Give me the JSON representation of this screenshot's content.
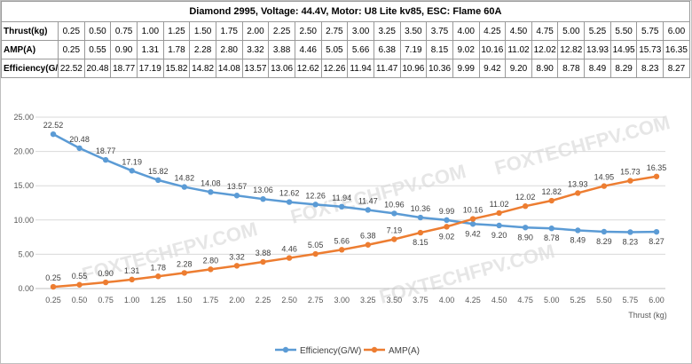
{
  "table": {
    "title": "Diamond 2995, Voltage: 44.4V, Motor: U8 Lite kv85, ESC: Flame 60A",
    "rows": [
      {
        "label": "Thrust(kg)",
        "cells": [
          "0.25",
          "0.50",
          "0.75",
          "1.00",
          "1.25",
          "1.50",
          "1.75",
          "2.00",
          "2.25",
          "2.50",
          "2.75",
          "3.00",
          "3.25",
          "3.50",
          "3.75",
          "4.00",
          "4.25",
          "4.50",
          "4.75",
          "5.00",
          "5.25",
          "5.50",
          "5.75",
          "6.00"
        ]
      },
      {
        "label": "AMP(A)",
        "cells": [
          "0.25",
          "0.55",
          "0.90",
          "1.31",
          "1.78",
          "2.28",
          "2.80",
          "3.32",
          "3.88",
          "4.46",
          "5.05",
          "5.66",
          "6.38",
          "7.19",
          "8.15",
          "9.02",
          "10.16",
          "11.02",
          "12.02",
          "12.82",
          "13.93",
          "14.95",
          "15.73",
          "16.35"
        ]
      },
      {
        "label": "Efficiency(G/W)",
        "cells": [
          "22.52",
          "20.48",
          "18.77",
          "17.19",
          "15.82",
          "14.82",
          "14.08",
          "13.57",
          "13.06",
          "12.62",
          "12.26",
          "11.94",
          "11.47",
          "10.96",
          "10.36",
          "9.99",
          "9.42",
          "9.20",
          "8.90",
          "8.78",
          "8.49",
          "8.29",
          "8.23",
          "8.27"
        ]
      }
    ]
  },
  "watermark": "FOXTECHFPV.COM",
  "chart_data": {
    "type": "line",
    "x": [
      "0.25",
      "0.50",
      "0.75",
      "1.00",
      "1.25",
      "1.50",
      "1.75",
      "2.00",
      "2.25",
      "2.50",
      "2.75",
      "3.00",
      "3.25",
      "3.50",
      "3.75",
      "4.00",
      "4.25",
      "4.50",
      "4.75",
      "5.00",
      "5.25",
      "5.50",
      "5.75",
      "6.00"
    ],
    "series": [
      {
        "name": "Efficiency(G/W)",
        "color": "#5b9bd5",
        "values": [
          22.52,
          20.48,
          18.77,
          17.19,
          15.82,
          14.82,
          14.08,
          13.57,
          13.06,
          12.62,
          12.26,
          11.94,
          11.47,
          10.96,
          10.36,
          9.99,
          9.42,
          9.2,
          8.9,
          8.78,
          8.49,
          8.29,
          8.23,
          8.27
        ],
        "labels": [
          "22.52",
          "20.48",
          "18.77",
          "17.19",
          "15.82",
          "14.82",
          "14.08",
          "13.57",
          "13.06",
          "12.62",
          "12.26",
          "11.94",
          "11.47",
          "10.96",
          "10.36",
          "9.99",
          "9.42",
          "9.20",
          "8.90",
          "8.78",
          "8.49",
          "8.29",
          "8.23",
          "8.27"
        ],
        "label_side": [
          "above",
          "above",
          "above",
          "above",
          "above",
          "above",
          "above",
          "above",
          "above",
          "above",
          "above",
          "above",
          "above",
          "above",
          "above",
          "above",
          "below",
          "below",
          "below",
          "below",
          "below",
          "below",
          "below",
          "below"
        ]
      },
      {
        "name": "AMP(A)",
        "color": "#ed7d31",
        "values": [
          0.25,
          0.55,
          0.9,
          1.31,
          1.78,
          2.28,
          2.8,
          3.32,
          3.88,
          4.46,
          5.05,
          5.66,
          6.38,
          7.19,
          8.15,
          9.02,
          10.16,
          11.02,
          12.02,
          12.82,
          13.93,
          14.95,
          15.73,
          16.35
        ],
        "labels": [
          "0.25",
          "0.55",
          "0.90",
          "1.31",
          "1.78",
          "2.28",
          "2.80",
          "3.32",
          "3.88",
          "4.46",
          "5.05",
          "5.66",
          "6.38",
          "7.19",
          "8.15",
          "9.02",
          "10.16",
          "11.02",
          "12.02",
          "12.82",
          "13.93",
          "14.95",
          "15.73",
          "16.35"
        ],
        "label_side": [
          "above",
          "above",
          "above",
          "above",
          "above",
          "above",
          "above",
          "above",
          "above",
          "above",
          "above",
          "above",
          "above",
          "above",
          "below",
          "below",
          "above",
          "above",
          "above",
          "above",
          "above",
          "above",
          "above",
          "above"
        ]
      }
    ],
    "ylim": [
      0,
      25
    ],
    "yticks": [
      "0.00",
      "5.00",
      "10.00",
      "15.00",
      "20.00",
      "25.00"
    ],
    "xlabel": "Thrust (kg)",
    "ylabel": "",
    "title": "",
    "grid": "horizontal",
    "legend_position": "bottom"
  }
}
